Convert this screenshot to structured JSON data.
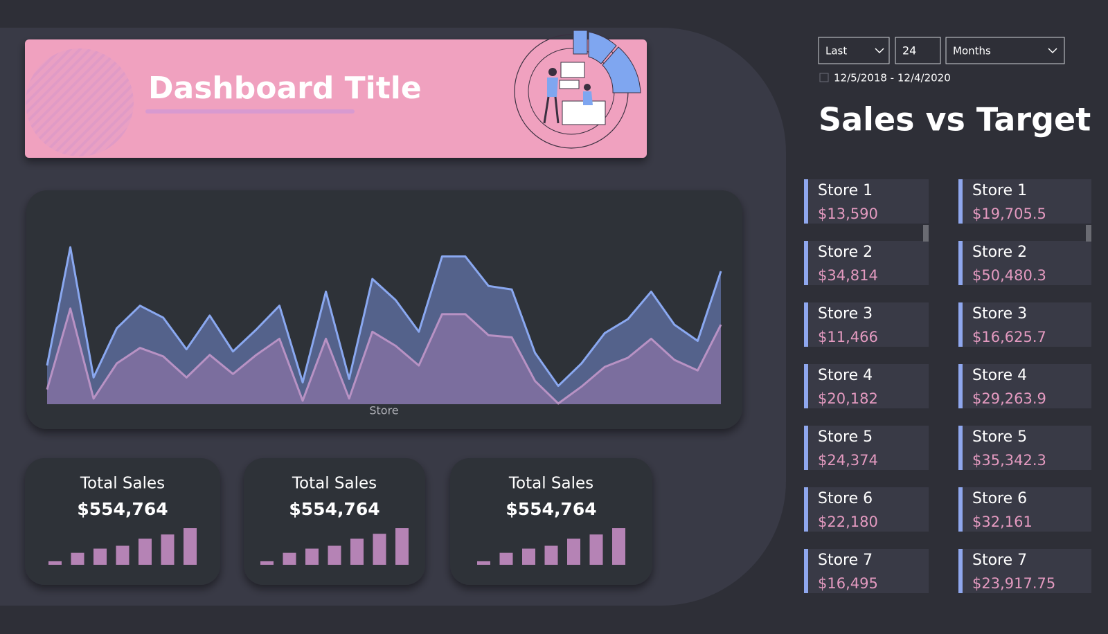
{
  "header": {
    "title": "Dashboard Title"
  },
  "filter": {
    "mode": "Last",
    "count": "24",
    "unit": "Months",
    "date_range": "12/5/2018 - 12/4/2020"
  },
  "sales_panel": {
    "title": "Sales vs Target",
    "columns": [
      {
        "stores": [
          {
            "name": "Store 1",
            "value": "$13,590"
          },
          {
            "name": "Store 2",
            "value": "$34,814"
          },
          {
            "name": "Store 3",
            "value": "$11,466"
          },
          {
            "name": "Store 4",
            "value": "$20,182"
          },
          {
            "name": "Store 5",
            "value": "$24,374"
          },
          {
            "name": "Store 6",
            "value": "$22,180"
          },
          {
            "name": "Store 7",
            "value": "$16,495"
          }
        ]
      },
      {
        "stores": [
          {
            "name": "Store 1",
            "value": "$19,705.5"
          },
          {
            "name": "Store 2",
            "value": "$50,480.3"
          },
          {
            "name": "Store 3",
            "value": "$16,625.7"
          },
          {
            "name": "Store 4",
            "value": "$29,263.9"
          },
          {
            "name": "Store 5",
            "value": "$35,342.3"
          },
          {
            "name": "Store 6",
            "value": "$32,161"
          },
          {
            "name": "Store 7",
            "value": "$23,917.75"
          }
        ]
      }
    ]
  },
  "chart_data": [
    {
      "type": "area",
      "x_label": "Store",
      "ylim": [
        0,
        240
      ],
      "series": [
        {
          "color": "#8aa8f0",
          "values": [
            55,
            223,
            38,
            108,
            140,
            123,
            78,
            126,
            75,
            106,
            140,
            31,
            160,
            36,
            178,
            148,
            103,
            210,
            210,
            168,
            163,
            73,
            26,
            58,
            101,
            121,
            160,
            113,
            90,
            189
          ]
        },
        {
          "color": "#b892c4",
          "values": [
            21,
            136,
            8,
            58,
            80,
            68,
            38,
            70,
            43,
            70,
            93,
            5,
            93,
            8,
            103,
            83,
            55,
            128,
            128,
            98,
            95,
            33,
            1,
            25,
            53,
            66,
            93,
            63,
            48,
            113
          ]
        }
      ]
    },
    {
      "type": "bar",
      "title": "Total Sales",
      "subtitle": "$554,764",
      "color": "#b583b5",
      "ylim": [
        0,
        55
      ],
      "values": [
        5,
        17,
        23,
        27,
        37,
        43,
        52
      ]
    },
    {
      "type": "bar",
      "title": "Total Sales",
      "subtitle": "$554,764",
      "color": "#b583b5",
      "ylim": [
        0,
        55
      ],
      "values": [
        5,
        17,
        23,
        27,
        37,
        44,
        52
      ]
    },
    {
      "type": "bar",
      "title": "Total Sales",
      "subtitle": "$554,764",
      "color": "#b583b5",
      "ylim": [
        0,
        55
      ],
      "values": [
        5,
        17,
        23,
        27,
        37,
        43,
        52
      ]
    }
  ]
}
